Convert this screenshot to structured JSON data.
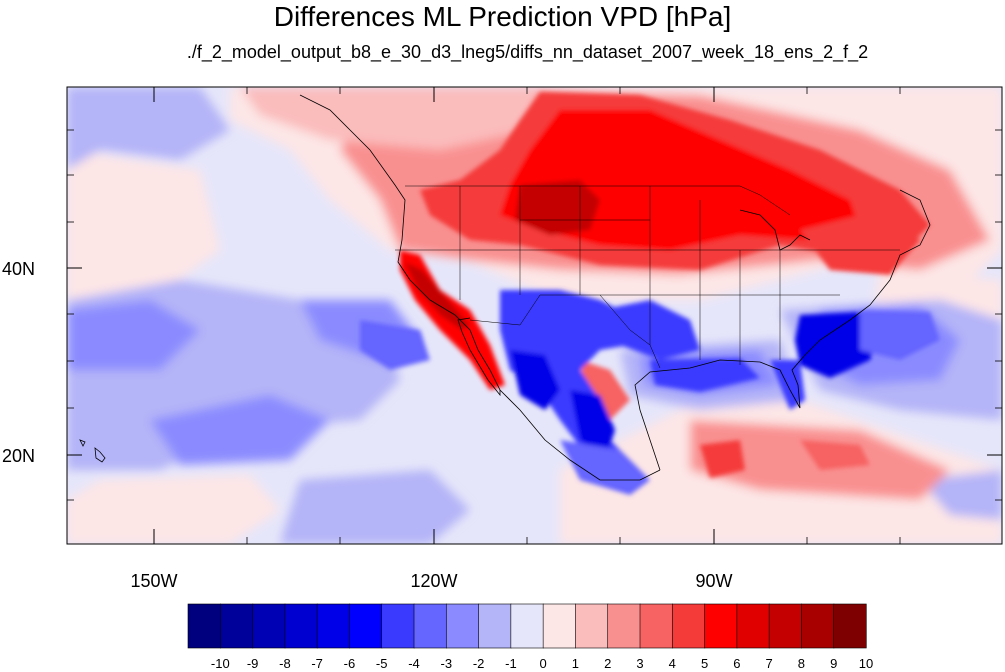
{
  "title": "Differences ML Prediction VPD [hPa]",
  "subtitle": "./f_2_model_output_b8_e_30_d3_lneg5/diffs_nn_dataset_2007_week_18_ens_2_f_2",
  "lat_labels": [
    "40N",
    "20N"
  ],
  "lon_labels": [
    "150W",
    "120W",
    "90W"
  ],
  "colorbar": {
    "labels": [
      "-10",
      "-9",
      "-8",
      "-7",
      "-6",
      "-5",
      "-4",
      "-3",
      "-2",
      "-1",
      "0",
      "1",
      "2",
      "3",
      "4",
      "5",
      "6",
      "7",
      "8",
      "9",
      "10"
    ],
    "colors": [
      "#00007f",
      "#00009a",
      "#0000b5",
      "#0000d0",
      "#0000e8",
      "#0000ff",
      "#3a3aff",
      "#6565ff",
      "#8b8bff",
      "#b4b4f8",
      "#e6e6fa",
      "#fde6e6",
      "#fbbcbc",
      "#f99090",
      "#f76262",
      "#f53a3a",
      "#ff0000",
      "#e00000",
      "#c40000",
      "#a80000",
      "#7f0000"
    ]
  },
  "map": {
    "extent": {
      "lon_min": -159.5,
      "lon_max": -60,
      "lat_min": 10,
      "lat_max": 59
    },
    "background_color": "#e6e6fa",
    "field_colors": {
      "neg1": "#b4b4f8",
      "neg2": "#8b8bff",
      "neg3": "#6565ff",
      "neg4": "#3a3aff",
      "neg5": "#0000e8",
      "pos1": "#fde6e6",
      "pos2": "#fbbcbc",
      "pos3": "#f99090",
      "pos4": "#f76262",
      "pos5": "#f53a3a",
      "pos6": "#ff0000",
      "pos7": "#c40000"
    }
  }
}
